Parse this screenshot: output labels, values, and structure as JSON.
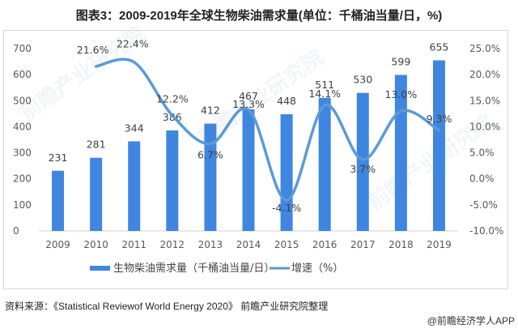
{
  "title": "图表3：2009-2019年全球生物柴油需求量(单位：千桶油当量/日，%)",
  "chart_data": {
    "type": "bar+line",
    "title": "图表3：2009-2019年全球生物柴油需求量(单位：千桶油当量/日，%)",
    "categories": [
      "2009",
      "2010",
      "2011",
      "2012",
      "2013",
      "2014",
      "2015",
      "2016",
      "2017",
      "2018",
      "2019"
    ],
    "series": [
      {
        "name": "生物柴油需求量（千桶油当量/日）",
        "type": "bar",
        "axis": "left",
        "color": "#3f86e0",
        "values": [
          231,
          281,
          344,
          386,
          412,
          467,
          448,
          511,
          530,
          599,
          655
        ],
        "labels": [
          "231",
          "281",
          "344",
          "386",
          "412",
          "467",
          "448",
          "511",
          "530",
          "599",
          "655"
        ]
      },
      {
        "name": "增速（%）",
        "type": "line",
        "axis": "right",
        "color": "#5b9bd5",
        "values": [
          null,
          21.6,
          22.4,
          12.2,
          6.7,
          13.3,
          -4.1,
          14.1,
          3.7,
          13.0,
          9.3
        ],
        "labels": [
          "",
          "21.6%",
          "22.4%",
          "12.2%",
          "6.7%",
          "13.3%",
          "-4.1%",
          "14.1%",
          "3.7%",
          "13.0%",
          "9.3%"
        ]
      }
    ],
    "left_axis": {
      "ylim": [
        0,
        700
      ],
      "ticks": [
        "0",
        "100",
        "200",
        "300",
        "400",
        "500",
        "600",
        "700"
      ]
    },
    "right_axis": {
      "ylim": [
        -10,
        25
      ],
      "ticks": [
        "-10.0%",
        "-5.0%",
        "0.0%",
        "5.0%",
        "10.0%",
        "15.0%",
        "20.0%",
        "25.0%"
      ]
    },
    "grid": false,
    "legend": "bottom"
  },
  "legend": {
    "bar_label": "生物柴油需求量（千桶油当量/日）",
    "line_label": "增速（%）"
  },
  "source": "资料来源：《Statistical Reviewof World Energy 2020》 前瞻产业研究院整理",
  "credit": "@前瞻经济学人APP",
  "watermark": "前瞻产业研究院"
}
